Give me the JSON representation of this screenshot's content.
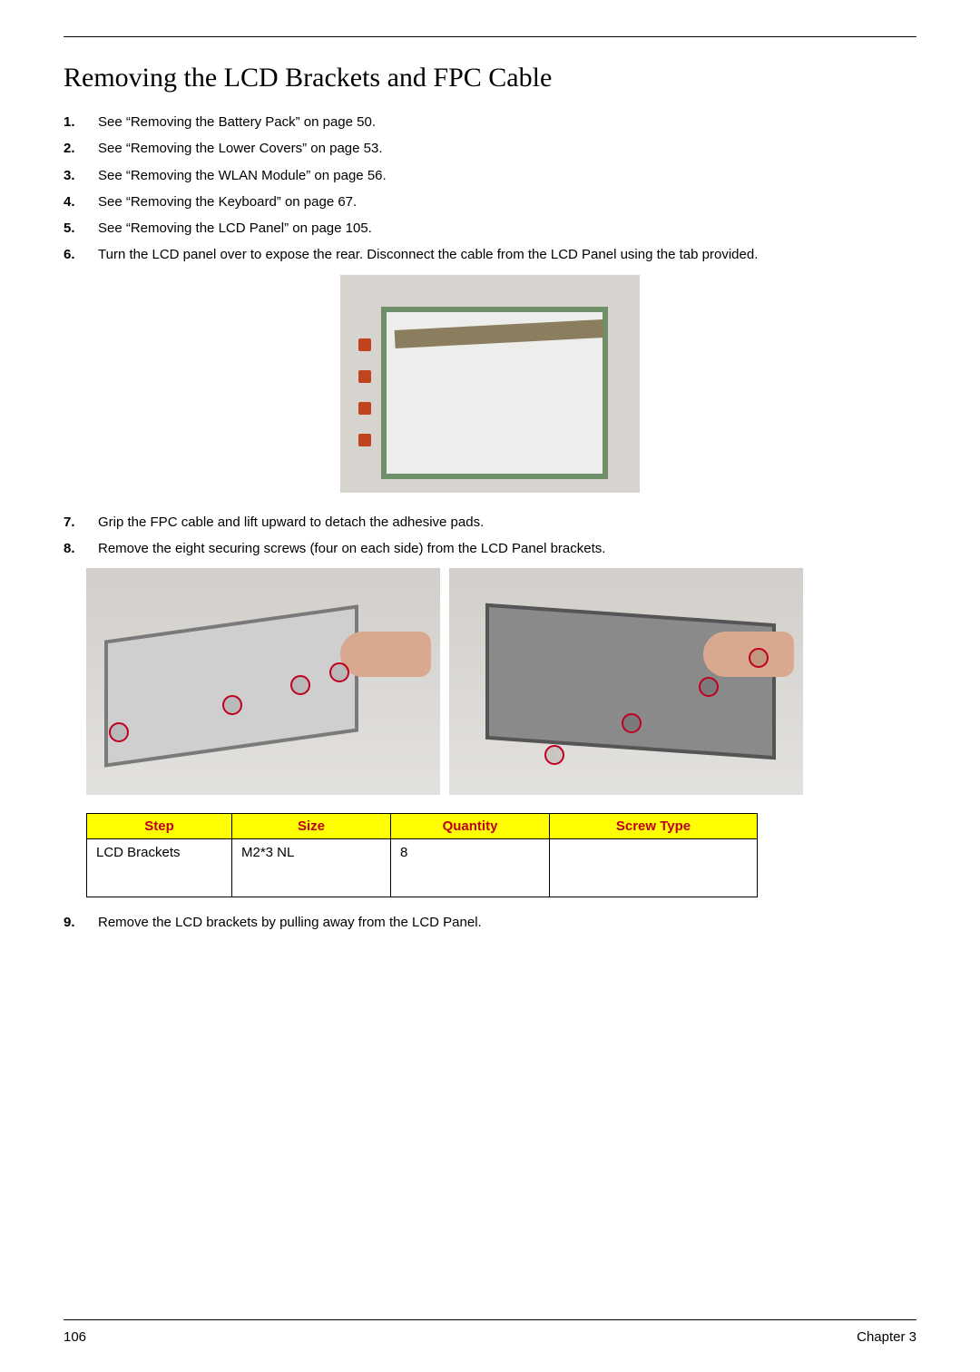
{
  "title": "Removing the LCD Brackets and FPC Cable",
  "steps": {
    "s1": "See “Removing the Battery Pack” on page 50.",
    "s2": "See “Removing the Lower Covers” on page 53.",
    "s3": "See “Removing the WLAN Module” on page 56.",
    "s4": "See “Removing the Keyboard” on page 67.",
    "s5": "See “Removing the LCD Panel” on page 105.",
    "s6": "Turn the LCD panel over to expose the rear. Disconnect the cable from the LCD Panel using the tab provided.",
    "s7": "Grip the FPC cable and lift upward to detach the adhesive pads.",
    "s8": "Remove the eight securing screws (four on each side) from the LCD Panel brackets.",
    "s9": "Remove the LCD brackets by pulling away from the LCD Panel."
  },
  "step_numbers": {
    "s1": "1.",
    "s2": "2.",
    "s3": "3.",
    "s4": "4.",
    "s5": "5.",
    "s6": "6.",
    "s7": "7.",
    "s8": "8.",
    "s9": "9."
  },
  "table": {
    "headers": {
      "step": "Step",
      "size": "Size",
      "qty": "Quantity",
      "type": "Screw Type"
    },
    "row": {
      "step": "LCD Brackets",
      "size": "M2*3 NL",
      "qty": "8",
      "type": ""
    },
    "header_bg": "#ffff00",
    "header_fg": "#c00020",
    "border_color": "#000000"
  },
  "footer": {
    "page": "106",
    "chapter": "Chapter 3"
  },
  "figures": {
    "fig1_alt": "LCD panel rear with FPC cable",
    "fig2_alt": "Screws on left bracket",
    "fig3_alt": "Screws on right bracket",
    "circle_color": "#c00020"
  },
  "colors": {
    "text": "#000000",
    "background": "#ffffff"
  }
}
